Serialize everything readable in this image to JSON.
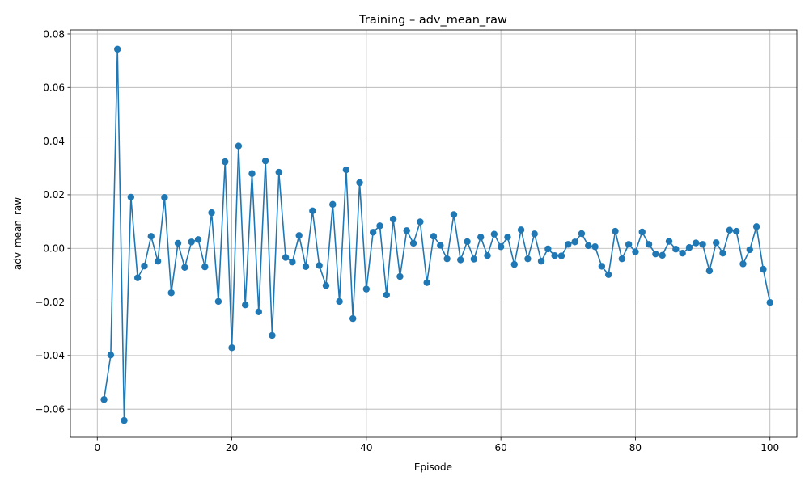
{
  "chart_data": {
    "type": "line",
    "title": "Training – adv_mean_raw",
    "xlabel": "Episode",
    "ylabel": "adv_mean_raw",
    "xlim": [
      -4,
      104
    ],
    "ylim": [
      -0.0705,
      0.0815
    ],
    "x_ticks": [
      0,
      20,
      40,
      60,
      80,
      100
    ],
    "x_tick_labels": [
      "0",
      "20",
      "40",
      "60",
      "80",
      "100"
    ],
    "y_ticks": [
      -0.06,
      -0.04,
      -0.02,
      0.0,
      0.02,
      0.04,
      0.06,
      0.08
    ],
    "y_tick_labels": [
      "−0.06",
      "−0.04",
      "−0.02",
      "0.00",
      "0.02",
      "0.04",
      "0.06",
      "0.08"
    ],
    "grid": true,
    "marker": "circle",
    "color": "#1f77b4",
    "series": [
      {
        "x": [
          1,
          2,
          3,
          4,
          5,
          6,
          7,
          8,
          9,
          10,
          11,
          12,
          13,
          14,
          15,
          16,
          17,
          18,
          19,
          20,
          21,
          22,
          23,
          24,
          25,
          26,
          27,
          28,
          29,
          30,
          31,
          32,
          33,
          34,
          35,
          36,
          37,
          38,
          39,
          40,
          41,
          42,
          43,
          44,
          45,
          46,
          47,
          48,
          49,
          50,
          51,
          52,
          53,
          54,
          55,
          56,
          57,
          58,
          59,
          60,
          61,
          62,
          63,
          64,
          65,
          66,
          67,
          68,
          69,
          70,
          71,
          72,
          73,
          74,
          75,
          76,
          77,
          78,
          79,
          80,
          81,
          82,
          83,
          84,
          85,
          86,
          87,
          88,
          89,
          90,
          91,
          92,
          93,
          94,
          95,
          96,
          97,
          98,
          99,
          100
        ],
        "values": [
          -0.0564,
          -0.0398,
          0.0743,
          -0.0642,
          0.0191,
          -0.011,
          -0.0066,
          0.0045,
          -0.0048,
          0.019,
          -0.0166,
          0.0019,
          -0.0071,
          0.0024,
          0.0033,
          -0.0069,
          0.0133,
          -0.0198,
          0.0323,
          -0.0371,
          0.0382,
          -0.0211,
          0.0279,
          -0.0237,
          0.0326,
          -0.0325,
          0.0284,
          -0.0034,
          -0.0051,
          0.0048,
          -0.0068,
          0.014,
          -0.0064,
          -0.0139,
          0.0164,
          -0.0198,
          0.0293,
          -0.0262,
          0.0245,
          -0.0152,
          0.006,
          0.0084,
          -0.0174,
          0.0109,
          -0.0105,
          0.0066,
          0.0019,
          0.0099,
          -0.0128,
          0.0045,
          0.0011,
          -0.0039,
          0.0126,
          -0.0043,
          0.0025,
          -0.004,
          0.0042,
          -0.0027,
          0.0053,
          0.0006,
          0.0042,
          -0.006,
          0.0069,
          -0.0039,
          0.0054,
          -0.0048,
          -0.0002,
          -0.0027,
          -0.0028,
          0.0015,
          0.0024,
          0.0055,
          0.001,
          0.0006,
          -0.0067,
          -0.0098,
          0.0064,
          -0.0039,
          0.0015,
          -0.0013,
          0.0061,
          0.0015,
          -0.0021,
          -0.0026,
          0.0026,
          -0.0003,
          -0.0018,
          0.0003,
          0.002,
          0.0015,
          -0.0084,
          0.0021,
          -0.0018,
          0.0068,
          0.0064,
          -0.0058,
          -0.0005,
          0.0081,
          -0.0078,
          -0.0202
        ]
      }
    ]
  }
}
